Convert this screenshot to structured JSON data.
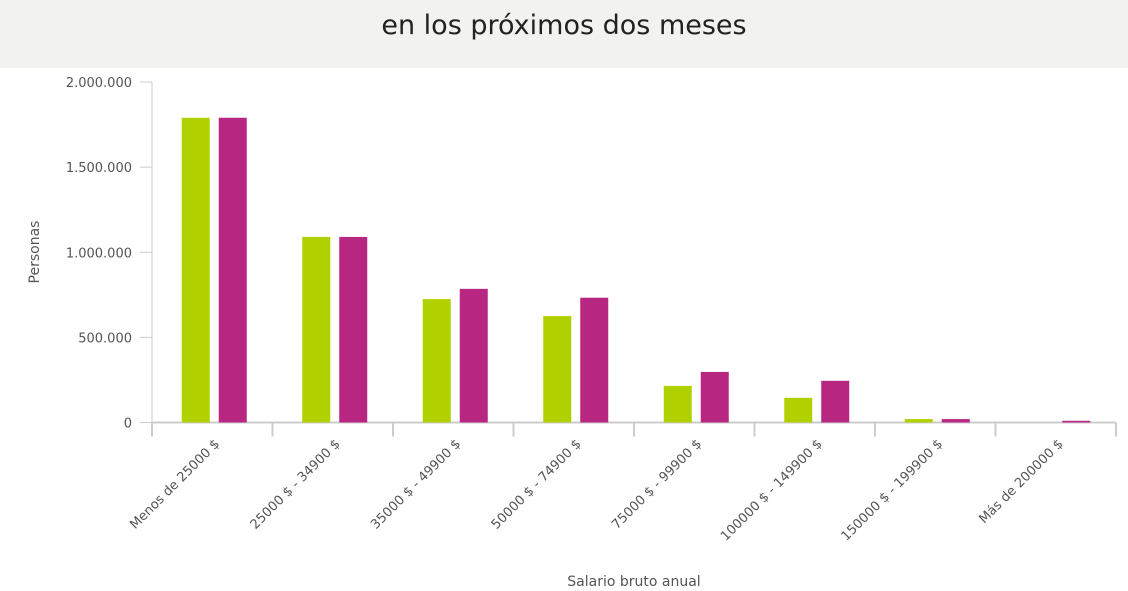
{
  "header": {
    "title": "en los próximos dos meses"
  },
  "chart_data": {
    "type": "bar",
    "title": "en los próximos dos meses",
    "xlabel": "Salario bruto anual",
    "ylabel": "Personas",
    "ylim": [
      0,
      2000000
    ],
    "yticks": [
      "0",
      "500.000",
      "1.000.000",
      "1.500.000",
      "2.000.000"
    ],
    "ytick_values": [
      0,
      500000,
      1000000,
      1500000,
      2000000
    ],
    "grid": false,
    "legend": "none",
    "categories": [
      "Menos de 25000 $",
      "25000 $ - 34900 $",
      "35000 $ - 49900 $",
      "50000 $ - 74900 $",
      "75000 $ - 99900 $",
      "100000 $ - 149900 $",
      "150000 $ - 199900 $",
      "Más de 200000 $"
    ],
    "series": [
      {
        "color": "#b0d000",
        "values": [
          1790000,
          1090000,
          725000,
          625000,
          215000,
          145000,
          20000,
          0
        ]
      },
      {
        "color": "#b72681",
        "values": [
          1790000,
          1090000,
          785000,
          733000,
          297000,
          245000,
          20000,
          10000
        ]
      }
    ]
  }
}
